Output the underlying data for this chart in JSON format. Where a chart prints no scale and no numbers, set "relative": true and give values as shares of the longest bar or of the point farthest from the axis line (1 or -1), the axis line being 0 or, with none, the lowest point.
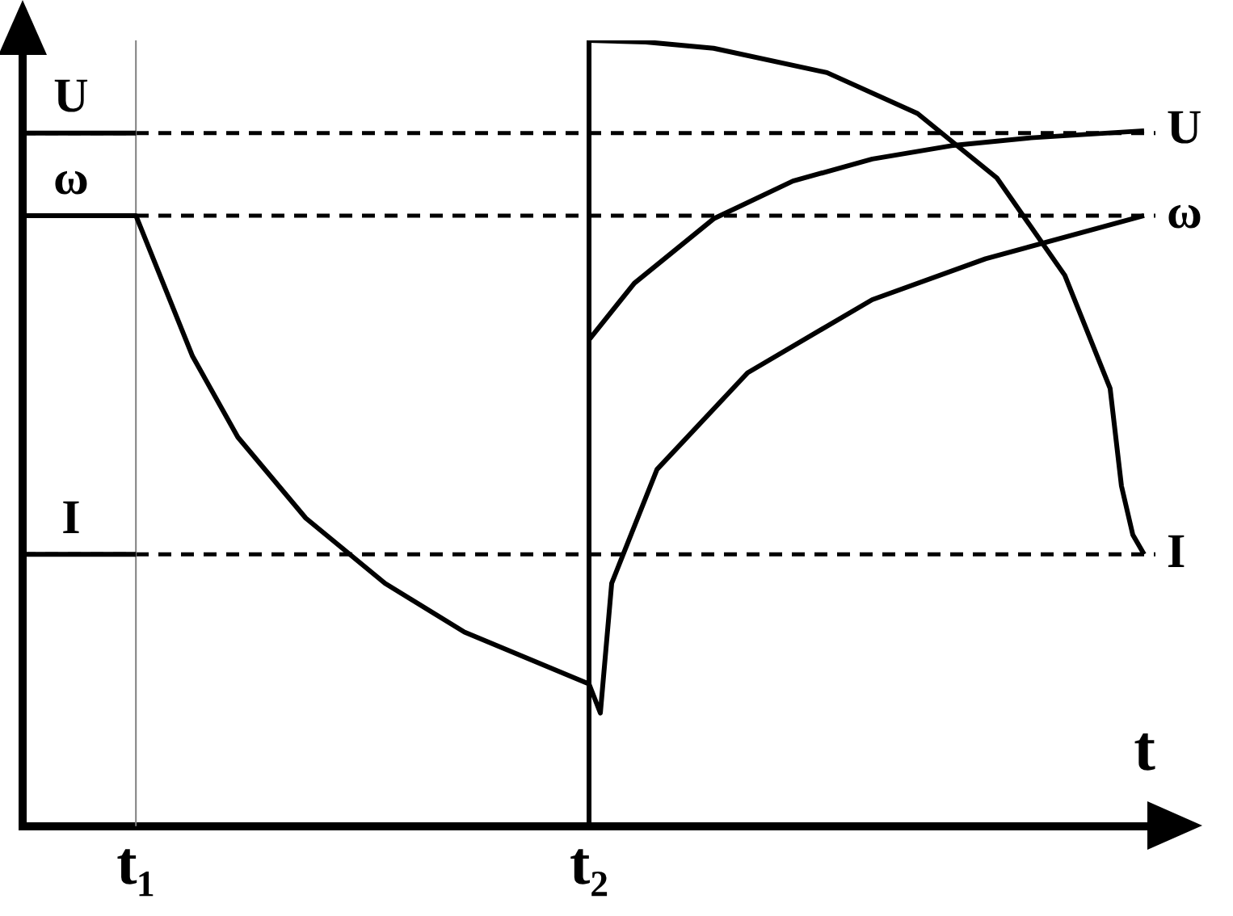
{
  "chart_data": {
    "type": "line",
    "relative": true,
    "xlabel": "t",
    "marker": "none",
    "line_style": "solid",
    "categories": [
      null,
      null,
      null,
      null,
      null,
      null,
      null,
      null,
      null,
      null,
      "t₁",
      null,
      null,
      null,
      null,
      null,
      null,
      null,
      null,
      null,
      null,
      null,
      null,
      null,
      null,
      null,
      null,
      null,
      null,
      null,
      null,
      null,
      null,
      null,
      null,
      null,
      null,
      null,
      null,
      null,
      null,
      null,
      null,
      null,
      null,
      null,
      null,
      null,
      null,
      null,
      "t₂",
      null,
      null,
      null,
      null,
      null,
      null,
      null,
      null,
      null,
      null,
      null,
      null,
      null,
      null,
      null,
      null,
      null,
      null,
      null,
      null,
      null,
      null,
      null,
      null,
      null,
      null,
      null,
      null,
      null,
      null,
      null,
      null,
      null,
      null,
      null,
      null,
      null,
      null,
      null,
      null,
      null,
      null,
      null,
      null,
      null,
      null,
      null,
      null,
      null,
      null
    ],
    "series": [
      {
        "name": "U",
        "color": "#000000",
        "values": [
          0.882,
          null,
          null,
          null,
          null,
          null,
          null,
          null,
          null,
          null,
          0.882,
          null,
          null,
          null,
          null,
          null,
          null,
          null,
          null,
          null,
          null,
          null,
          null,
          null,
          null,
          null,
          null,
          null,
          null,
          null,
          null,
          null,
          null,
          null,
          null,
          null,
          null,
          null,
          null,
          null,
          null,
          null,
          null,
          null,
          null,
          null,
          null,
          null,
          null,
          null,
          0.619,
          null,
          null,
          null,
          0.691,
          null,
          null,
          null,
          null,
          null,
          null,
          0.773,
          null,
          null,
          null,
          null,
          null,
          null,
          0.821,
          null,
          null,
          null,
          null,
          null,
          null,
          0.849,
          null,
          null,
          null,
          null,
          null,
          null,
          0.866,
          null,
          null,
          null,
          null,
          null,
          null,
          0.876,
          null,
          null,
          null,
          null,
          null,
          null,
          null,
          null,
          null,
          0.885,
          null
        ]
      },
      {
        "name": "ω",
        "color": "#000000",
        "values": [
          0.777,
          null,
          null,
          null,
          null,
          null,
          null,
          null,
          null,
          null,
          0.777,
          null,
          null,
          null,
          null,
          0.598,
          null,
          null,
          null,
          0.495,
          null,
          null,
          null,
          null,
          null,
          0.392,
          null,
          null,
          null,
          null,
          null,
          null,
          0.309,
          null,
          null,
          null,
          null,
          null,
          null,
          0.247,
          null,
          null,
          null,
          null,
          null,
          null,
          null,
          null,
          null,
          null,
          0.181,
          0.144,
          0.309,
          null,
          null,
          null,
          0.454,
          null,
          null,
          null,
          null,
          null,
          null,
          null,
          0.577,
          null,
          null,
          null,
          null,
          null,
          null,
          null,
          null,
          null,
          null,
          0.67,
          null,
          null,
          null,
          null,
          null,
          null,
          null,
          null,
          null,
          0.722,
          null,
          null,
          null,
          null,
          null,
          null,
          null,
          null,
          null,
          null,
          null,
          null,
          null,
          0.777,
          null
        ]
      },
      {
        "name": "I",
        "color": "#000000",
        "values": [
          0.346,
          null,
          null,
          null,
          null,
          null,
          null,
          null,
          null,
          null,
          0.346,
          null,
          null,
          null,
          null,
          null,
          null,
          null,
          null,
          null,
          null,
          null,
          null,
          null,
          null,
          null,
          null,
          null,
          null,
          null,
          null,
          null,
          null,
          null,
          null,
          null,
          null,
          null,
          null,
          null,
          null,
          null,
          null,
          null,
          null,
          null,
          null,
          null,
          null,
          null,
          1,
          null,
          null,
          null,
          null,
          0.998,
          null,
          null,
          null,
          null,
          null,
          0.99,
          null,
          null,
          null,
          null,
          null,
          null,
          null,
          null,
          null,
          0.959,
          null,
          null,
          null,
          null,
          null,
          null,
          null,
          0.907,
          null,
          null,
          null,
          null,
          null,
          null,
          0.825,
          null,
          null,
          null,
          null,
          null,
          0.701,
          null,
          null,
          null,
          0.557,
          0.433,
          0.371,
          0.346,
          null
        ]
      }
    ],
    "ref_lines": [
      {
        "axis": "y",
        "value": 0.882,
        "line_style": "dashed",
        "color": "#000000"
      },
      {
        "axis": "y",
        "value": 0.777,
        "line_style": "dashed",
        "color": "#000000"
      },
      {
        "axis": "y",
        "value": 0.346,
        "line_style": "dashed",
        "color": "#000000"
      },
      {
        "axis": "x",
        "value": "t₁",
        "line_style": "solid",
        "color": "#808080"
      },
      {
        "axis": "x",
        "value": "t₂",
        "line_style": "solid",
        "color": "#000000"
      }
    ],
    "annotations": [
      {
        "text": "U",
        "y": 0.882
      },
      {
        "text": "ω",
        "y": 0.777
      },
      {
        "text": "I",
        "y": 0.346
      }
    ]
  }
}
